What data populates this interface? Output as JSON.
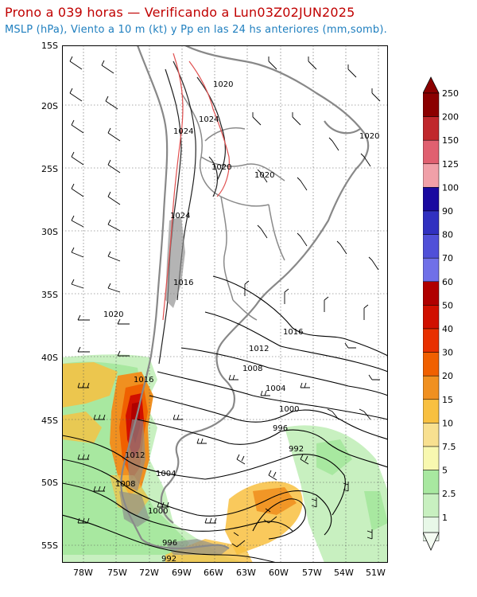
{
  "header": {
    "title": "Prono a 039 horas — Verificando a Lun03Z02JUN2025",
    "subtitle": "MSLP (hPa), Viento a 10 m (kt) y Pp en las 24 hs anteriores (mm,somb)."
  },
  "axes": {
    "lat_labels": [
      "15S",
      "20S",
      "25S",
      "30S",
      "35S",
      "40S",
      "45S",
      "50S",
      "55S"
    ],
    "lon_labels": [
      "78W",
      "75W",
      "72W",
      "69W",
      "66W",
      "63W",
      "60W",
      "57W",
      "54W",
      "51W"
    ]
  },
  "isobar_labels": [
    "1020",
    "1024",
    "1024",
    "1020",
    "1020",
    "1024",
    "1016",
    "1020",
    "1020",
    "1016",
    "1012",
    "1008",
    "1004",
    "1016",
    "1000",
    "996",
    "1012",
    "992",
    "1008",
    "1004",
    "1000",
    "996",
    "992"
  ],
  "colorbar": {
    "labels": [
      "250",
      "200",
      "150",
      "125",
      "100",
      "90",
      "80",
      "70",
      "60",
      "50",
      "40",
      "30",
      "20",
      "15",
      "10",
      "7.5",
      "5",
      "2.5",
      "1"
    ],
    "colors": [
      "#8b0000",
      "#c0282c",
      "#e06070",
      "#f0a0a8",
      "#1a0aa0",
      "#3030c0",
      "#5050d8",
      "#7070e8",
      "#b00000",
      "#d01000",
      "#e83000",
      "#f06000",
      "#f09020",
      "#f8c040",
      "#f8e090",
      "#f8f8b0",
      "#a8e8a0",
      "#c8f0c0",
      "#e8f8e8"
    ]
  }
}
